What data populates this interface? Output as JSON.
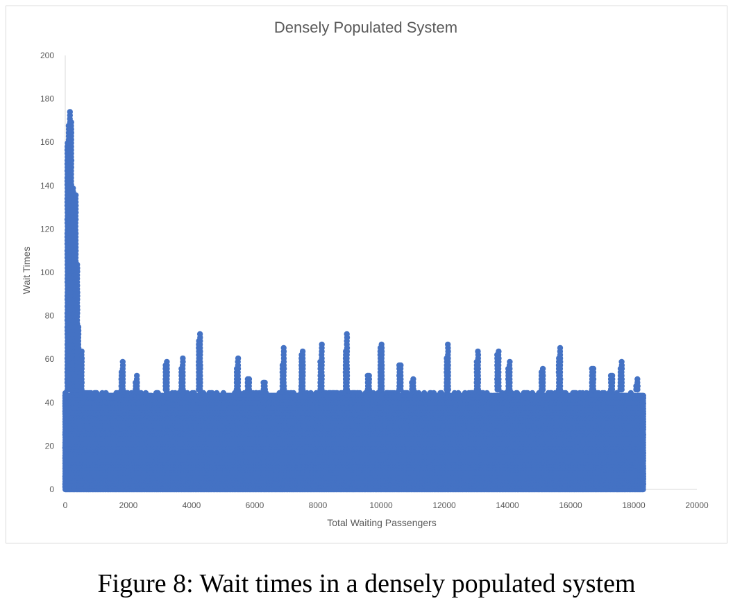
{
  "figure": {
    "caption": "Figure 8: Wait times in a densely populated system"
  },
  "chart_data": {
    "type": "scatter",
    "title": "Densely Populated System",
    "xlabel": "Total Waiting Passengers",
    "ylabel": "Wait Times",
    "xlim": [
      0,
      20000
    ],
    "ylim": [
      0,
      200
    ],
    "xticks": [
      0,
      2000,
      4000,
      6000,
      8000,
      10000,
      12000,
      14000,
      16000,
      18000,
      20000
    ],
    "yticks": [
      0,
      20,
      40,
      60,
      80,
      100,
      120,
      140,
      160,
      180,
      200
    ],
    "grid": false,
    "legend": "none",
    "color": "#4472C4",
    "point_cloud": {
      "x_range": [
        0,
        18300
      ],
      "dense_band_max_wait": 45,
      "typical_max_wait": 46
    },
    "peaks": [
      {
        "x": 150,
        "y": 174
      },
      {
        "x": 250,
        "y": 140
      },
      {
        "x": 300,
        "y": 110
      },
      {
        "x": 400,
        "y": 75
      },
      {
        "x": 500,
        "y": 65
      },
      {
        "x": 1800,
        "y": 59
      },
      {
        "x": 2250,
        "y": 53
      },
      {
        "x": 3200,
        "y": 60
      },
      {
        "x": 3700,
        "y": 61
      },
      {
        "x": 4250,
        "y": 73
      },
      {
        "x": 5450,
        "y": 62
      },
      {
        "x": 5800,
        "y": 52
      },
      {
        "x": 6300,
        "y": 50
      },
      {
        "x": 6900,
        "y": 66
      },
      {
        "x": 7500,
        "y": 65
      },
      {
        "x": 8100,
        "y": 68
      },
      {
        "x": 8900,
        "y": 73
      },
      {
        "x": 9600,
        "y": 54
      },
      {
        "x": 10000,
        "y": 68
      },
      {
        "x": 10600,
        "y": 58
      },
      {
        "x": 11000,
        "y": 52
      },
      {
        "x": 12100,
        "y": 68
      },
      {
        "x": 13050,
        "y": 65
      },
      {
        "x": 13700,
        "y": 64
      },
      {
        "x": 14050,
        "y": 60
      },
      {
        "x": 15100,
        "y": 57
      },
      {
        "x": 15650,
        "y": 66
      },
      {
        "x": 16700,
        "y": 57
      },
      {
        "x": 17300,
        "y": 54
      },
      {
        "x": 17600,
        "y": 59
      },
      {
        "x": 18100,
        "y": 51
      }
    ]
  }
}
